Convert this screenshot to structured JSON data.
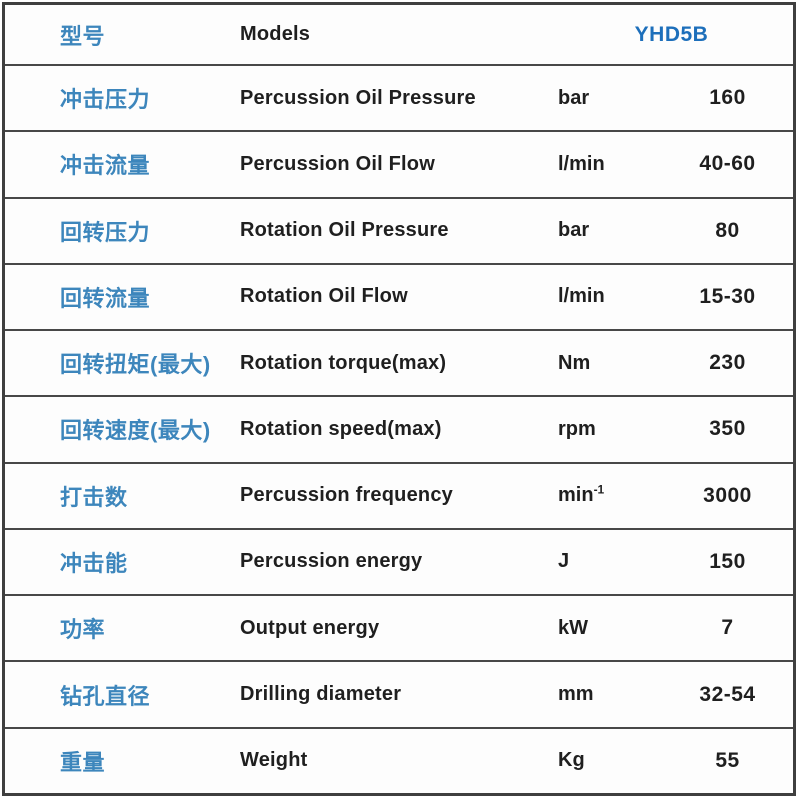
{
  "table": {
    "title_row": {
      "cn": "型号",
      "en": "Models",
      "model": "YHD5B"
    },
    "rows": [
      {
        "cn": "冲击压力",
        "en": "Percussion Oil Pressure",
        "unit": "bar",
        "unit_sup": "",
        "value": "160"
      },
      {
        "cn": "冲击流量",
        "en": "Percussion Oil Flow",
        "unit": "l/min",
        "unit_sup": "",
        "value": "40-60"
      },
      {
        "cn": "回转压力",
        "en": "Rotation Oil Pressure",
        "unit": "bar",
        "unit_sup": "",
        "value": "80"
      },
      {
        "cn": "回转流量",
        "en": "Rotation Oil Flow",
        "unit": "l/min",
        "unit_sup": "",
        "value": "15-30"
      },
      {
        "cn": "回转扭矩(最大)",
        "en": "Rotation torque(max)",
        "unit": "Nm",
        "unit_sup": "",
        "value": "230"
      },
      {
        "cn": "回转速度(最大)",
        "en": "Rotation speed(max)",
        "unit": "rpm",
        "unit_sup": "",
        "value": "350"
      },
      {
        "cn": "打击数",
        "en": "Percussion frequency",
        "unit": "min",
        "unit_sup": "-1",
        "value": "3000"
      },
      {
        "cn": "冲击能",
        "en": "Percussion energy",
        "unit": "J",
        "unit_sup": "",
        "value": "150"
      },
      {
        "cn": "功率",
        "en": "Output energy",
        "unit": "kW",
        "unit_sup": "",
        "value": "7"
      },
      {
        "cn": "钻孔直径",
        "en": "Drilling diameter",
        "unit": "mm",
        "unit_sup": "",
        "value": "32-54"
      },
      {
        "cn": "重量",
        "en": "Weight",
        "unit": "Kg",
        "unit_sup": "",
        "value": "55"
      }
    ],
    "colors": {
      "chinese_label": "#3d86bc",
      "model_value": "#1d6fbb",
      "body_text": "#1f1f1f",
      "border": "#3f3f3f",
      "row_background": "#fdfdfd"
    }
  }
}
